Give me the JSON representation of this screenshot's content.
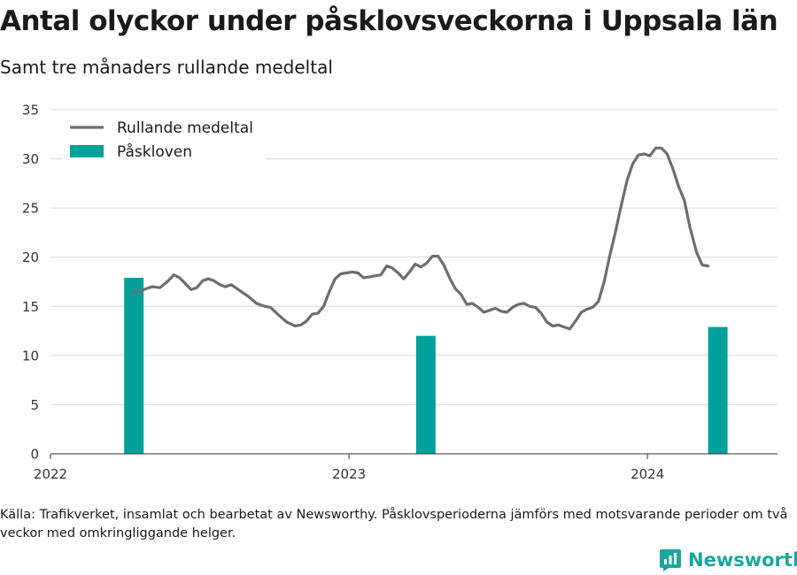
{
  "title": "Antal olyckor under påsklovsveckorna i Uppsala län",
  "subtitle": "Samt tre månaders rullande medeltal",
  "note": "Källa: Trafikverket, insamlat och bearbetat av Newsworthy. Påsklovsperioderna jämförs med motsvarande perioder om två veckor med omkringliggande helger.",
  "brand": "Newsworthy",
  "colors": {
    "line": "#6e6e72",
    "bar": "#00a19a",
    "grid": "#d9d9d9",
    "brand": "#1aa89d"
  },
  "chart_data": {
    "type": "bar+line",
    "ylim": [
      0,
      35
    ],
    "y_ticks": [
      0,
      5,
      10,
      15,
      20,
      25,
      30,
      35
    ],
    "xlim": [
      "2022-01-01",
      "2024-06-08"
    ],
    "x_ticks": [
      {
        "date": "2022-01-01",
        "label": "2022"
      },
      {
        "date": "2023-01-01",
        "label": "2023"
      },
      {
        "date": "2024-01-01",
        "label": "2024"
      }
    ],
    "grid": true,
    "legend_position": "top-left",
    "series": [
      {
        "name": "Rullande medeltal",
        "type": "line",
        "points": [
          [
            "2022-04-11",
            16.3
          ],
          [
            "2022-04-25",
            16.7
          ],
          [
            "2022-05-05",
            17.0
          ],
          [
            "2022-05-15",
            16.9
          ],
          [
            "2022-05-25",
            17.6
          ],
          [
            "2022-06-01",
            18.2
          ],
          [
            "2022-06-08",
            17.9
          ],
          [
            "2022-06-15",
            17.3
          ],
          [
            "2022-06-22",
            16.7
          ],
          [
            "2022-06-29",
            16.9
          ],
          [
            "2022-07-06",
            17.6
          ],
          [
            "2022-07-13",
            17.8
          ],
          [
            "2022-07-20",
            17.6
          ],
          [
            "2022-07-27",
            17.2
          ],
          [
            "2022-08-03",
            17.0
          ],
          [
            "2022-08-10",
            17.2
          ],
          [
            "2022-08-17",
            16.8
          ],
          [
            "2022-08-31",
            16.0
          ],
          [
            "2022-09-10",
            15.3
          ],
          [
            "2022-09-20",
            15.0
          ],
          [
            "2022-09-27",
            14.9
          ],
          [
            "2022-10-07",
            14.1
          ],
          [
            "2022-10-17",
            13.4
          ],
          [
            "2022-10-27",
            13.0
          ],
          [
            "2022-11-03",
            13.1
          ],
          [
            "2022-11-10",
            13.5
          ],
          [
            "2022-11-17",
            14.2
          ],
          [
            "2022-11-24",
            14.3
          ],
          [
            "2022-12-01",
            15.0
          ],
          [
            "2022-12-08",
            16.5
          ],
          [
            "2022-12-15",
            17.8
          ],
          [
            "2022-12-22",
            18.3
          ],
          [
            "2022-12-29",
            18.4
          ],
          [
            "2023-01-05",
            18.5
          ],
          [
            "2023-01-12",
            18.4
          ],
          [
            "2023-01-19",
            17.9
          ],
          [
            "2023-01-26",
            18.0
          ],
          [
            "2023-02-02",
            18.1
          ],
          [
            "2023-02-09",
            18.2
          ],
          [
            "2023-02-16",
            19.1
          ],
          [
            "2023-02-23",
            18.9
          ],
          [
            "2023-03-02",
            18.4
          ],
          [
            "2023-03-09",
            17.8
          ],
          [
            "2023-03-16",
            18.5
          ],
          [
            "2023-03-23",
            19.3
          ],
          [
            "2023-03-30",
            19.0
          ],
          [
            "2023-04-06",
            19.4
          ],
          [
            "2023-04-13",
            20.1
          ],
          [
            "2023-04-20",
            20.1
          ],
          [
            "2023-04-27",
            19.2
          ],
          [
            "2023-05-04",
            17.9
          ],
          [
            "2023-05-11",
            16.8
          ],
          [
            "2023-05-18",
            16.2
          ],
          [
            "2023-05-25",
            15.2
          ],
          [
            "2023-06-01",
            15.3
          ],
          [
            "2023-06-08",
            14.9
          ],
          [
            "2023-06-15",
            14.4
          ],
          [
            "2023-06-22",
            14.6
          ],
          [
            "2023-06-29",
            14.8
          ],
          [
            "2023-07-06",
            14.5
          ],
          [
            "2023-07-13",
            14.4
          ],
          [
            "2023-07-20",
            14.9
          ],
          [
            "2023-07-27",
            15.2
          ],
          [
            "2023-08-03",
            15.3
          ],
          [
            "2023-08-10",
            15.0
          ],
          [
            "2023-08-17",
            14.9
          ],
          [
            "2023-08-24",
            14.3
          ],
          [
            "2023-08-31",
            13.4
          ],
          [
            "2023-09-07",
            13.0
          ],
          [
            "2023-09-14",
            13.1
          ],
          [
            "2023-09-21",
            12.9
          ],
          [
            "2023-09-28",
            12.7
          ],
          [
            "2023-10-05",
            13.5
          ],
          [
            "2023-10-12",
            14.4
          ],
          [
            "2023-10-19",
            14.7
          ],
          [
            "2023-10-26",
            14.9
          ],
          [
            "2023-11-02",
            15.5
          ],
          [
            "2023-11-09",
            17.5
          ],
          [
            "2023-11-16",
            20.2
          ],
          [
            "2023-11-23",
            22.6
          ],
          [
            "2023-11-30",
            25.3
          ],
          [
            "2023-12-07",
            27.8
          ],
          [
            "2023-12-14",
            29.5
          ],
          [
            "2023-12-21",
            30.4
          ],
          [
            "2023-12-28",
            30.5
          ],
          [
            "2024-01-04",
            30.3
          ],
          [
            "2024-01-11",
            31.1
          ],
          [
            "2024-01-18",
            31.1
          ],
          [
            "2024-01-25",
            30.5
          ],
          [
            "2024-02-01",
            29.0
          ],
          [
            "2024-02-08",
            27.2
          ],
          [
            "2024-02-15",
            25.8
          ],
          [
            "2024-02-22",
            23.0
          ],
          [
            "2024-03-01",
            20.5
          ],
          [
            "2024-03-08",
            19.2
          ],
          [
            "2024-03-15",
            19.1
          ]
        ]
      },
      {
        "name": "Påskloven",
        "type": "bar",
        "points": [
          [
            "2022-04-13",
            17.9
          ],
          [
            "2023-04-05",
            12.0
          ],
          [
            "2024-03-27",
            12.9
          ]
        ]
      }
    ]
  }
}
